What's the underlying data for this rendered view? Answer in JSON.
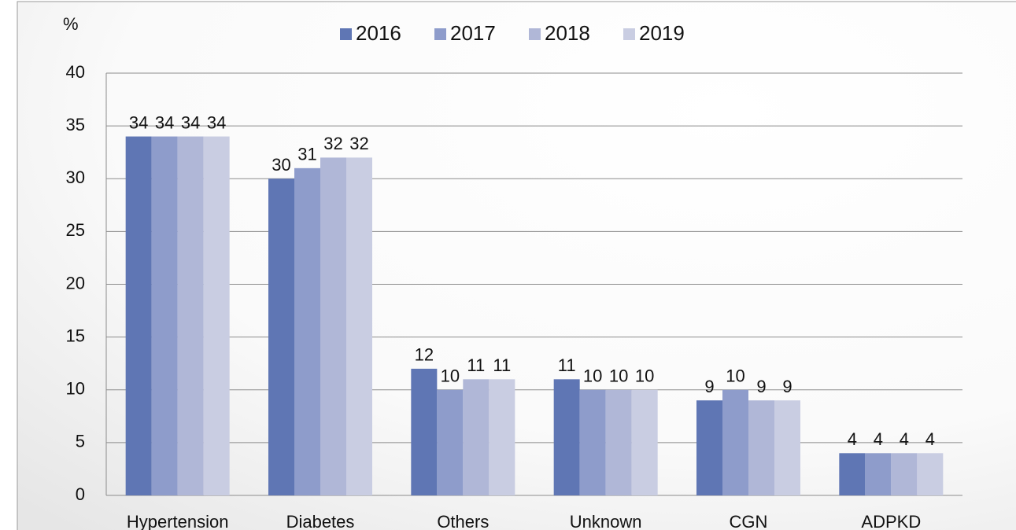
{
  "chart_data": {
    "type": "bar",
    "y_label": "%",
    "categories": [
      "Hypertension",
      "Diabetes",
      "Others",
      "Unknown",
      "CGN",
      "ADPKD"
    ],
    "series": [
      {
        "name": "2016",
        "color": "#5f76b4",
        "values": [
          34,
          30,
          12,
          11,
          9,
          4
        ]
      },
      {
        "name": "2017",
        "color": "#8e9ccb",
        "values": [
          34,
          31,
          10,
          10,
          10,
          4
        ]
      },
      {
        "name": "2018",
        "color": "#b0b7d7",
        "values": [
          34,
          32,
          11,
          10,
          9,
          4
        ]
      },
      {
        "name": "2019",
        "color": "#c9cde2",
        "values": [
          34,
          32,
          11,
          10,
          9,
          4
        ]
      }
    ],
    "ylim": [
      0,
      40
    ],
    "yticks": [
      0,
      5,
      10,
      15,
      20,
      25,
      30,
      35,
      40
    ],
    "grid": true,
    "legend": "top"
  }
}
